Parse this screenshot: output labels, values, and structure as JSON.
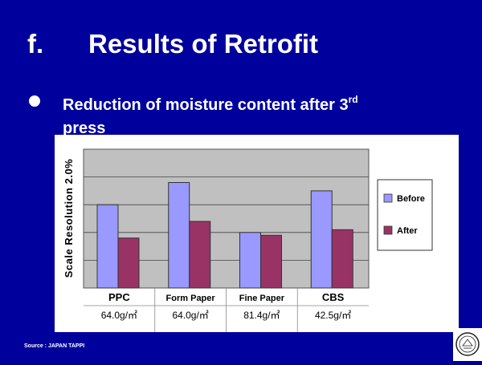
{
  "slide": {
    "number": "f.",
    "title": "Results of Retrofit",
    "bullet_main": "Reduction of moisture content after 3",
    "bullet_sup": "rd",
    "bullet_end": "press",
    "source": "Source : JAPAN TAPPI"
  },
  "chart_data": {
    "type": "bar",
    "ylabel": "Scale Resolution  2.0%",
    "categories": [
      "PPC",
      "Form Paper",
      "Fine Paper",
      "CBS"
    ],
    "category_basis_weight": [
      "64.0g/㎡",
      "64.0g/㎡",
      "81.4g/㎡",
      "42.5g/㎡"
    ],
    "gridlines": 5,
    "ylim": [
      0,
      5
    ],
    "series": [
      {
        "name": "Before",
        "values": [
          3.0,
          3.8,
          2.0,
          3.5
        ],
        "color": "#9999ff"
      },
      {
        "name": "After",
        "values": [
          1.8,
          2.4,
          1.9,
          2.1
        ],
        "color": "#993366"
      }
    ],
    "grid": true,
    "legend_position": "right",
    "plot_background": "#c0c0c0"
  }
}
